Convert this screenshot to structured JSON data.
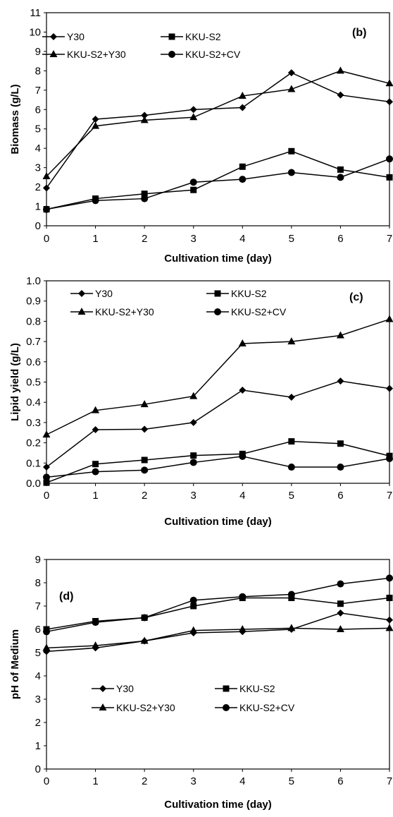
{
  "chart_data": [
    {
      "type": "line",
      "panel_label": "(b)",
      "xlabel": "Cultivation time (day)",
      "ylabel": "Biomass (g/L)",
      "xlim": [
        0,
        7
      ],
      "ylim": [
        0,
        11
      ],
      "x": [
        0,
        1,
        2,
        3,
        4,
        5,
        6,
        7
      ],
      "xticks": [
        "0",
        "1",
        "2",
        "3",
        "4",
        "5",
        "6",
        "7"
      ],
      "yticks": [
        "0",
        "1",
        "2",
        "3",
        "4",
        "5",
        "6",
        "7",
        "8",
        "9",
        "10",
        "11"
      ],
      "grid": false,
      "legend_position": "top-left",
      "series": [
        {
          "name": "Y30",
          "marker": "diamond",
          "values": [
            1.95,
            5.5,
            5.7,
            6.0,
            6.1,
            7.9,
            6.75,
            6.4
          ]
        },
        {
          "name": "KKU-S2",
          "marker": "square",
          "values": [
            0.85,
            1.4,
            1.65,
            1.85,
            3.05,
            3.85,
            2.9,
            2.5
          ]
        },
        {
          "name": "KKU-S2+Y30",
          "marker": "triangle",
          "values": [
            2.55,
            5.15,
            5.45,
            5.6,
            6.7,
            7.05,
            8.0,
            7.35
          ]
        },
        {
          "name": "KKU-S2+CV",
          "marker": "circle",
          "values": [
            0.85,
            1.3,
            1.4,
            2.25,
            2.4,
            2.75,
            2.5,
            3.45
          ]
        }
      ]
    },
    {
      "type": "line",
      "panel_label": "(c)",
      "xlabel": "Cultivation time (day)",
      "ylabel": "Lipid yield (g/L)",
      "xlim": [
        0,
        7
      ],
      "ylim": [
        0,
        1
      ],
      "x": [
        0,
        1,
        2,
        3,
        4,
        5,
        6,
        7
      ],
      "xticks": [
        "0",
        "1",
        "2",
        "3",
        "4",
        "5",
        "6",
        "7"
      ],
      "yticks": [
        "0.0",
        "0.1",
        "0.2",
        "0.3",
        "0.4",
        "0.5",
        "0.6",
        "0.7",
        "0.8",
        "0.9",
        "1.0"
      ],
      "grid": false,
      "legend_position": "top",
      "series": [
        {
          "name": "Y30",
          "marker": "diamond",
          "values": [
            0.08,
            0.265,
            0.267,
            0.3,
            0.46,
            0.425,
            0.505,
            0.468
          ]
        },
        {
          "name": "KKU-S2",
          "marker": "square",
          "values": [
            0.003,
            0.095,
            0.115,
            0.137,
            0.145,
            0.207,
            0.196,
            0.135
          ]
        },
        {
          "name": "KKU-S2+Y30",
          "marker": "triangle",
          "values": [
            0.24,
            0.36,
            0.39,
            0.43,
            0.69,
            0.7,
            0.73,
            0.81
          ]
        },
        {
          "name": "KKU-S2+CV",
          "marker": "circle",
          "values": [
            0.03,
            0.057,
            0.065,
            0.103,
            0.133,
            0.08,
            0.08,
            0.122
          ]
        }
      ]
    },
    {
      "type": "line",
      "panel_label": "(d)",
      "xlabel": "Cultivation time (day)",
      "ylabel": "pH of Medium",
      "xlim": [
        0,
        7
      ],
      "ylim": [
        0,
        9
      ],
      "x": [
        0,
        1,
        2,
        3,
        4,
        5,
        6,
        7
      ],
      "xticks": [
        "0",
        "1",
        "2",
        "3",
        "4",
        "5",
        "6",
        "7"
      ],
      "yticks": [
        "0",
        "1",
        "2",
        "3",
        "4",
        "5",
        "6",
        "7",
        "8",
        "9"
      ],
      "grid": false,
      "legend_position": "center-left",
      "series": [
        {
          "name": "Y30",
          "marker": "diamond",
          "values": [
            5.05,
            5.2,
            5.5,
            5.85,
            5.9,
            6.0,
            6.7,
            6.4
          ]
        },
        {
          "name": "KKU-S2",
          "marker": "square",
          "values": [
            6.0,
            6.35,
            6.5,
            7.0,
            7.35,
            7.35,
            7.1,
            7.35
          ]
        },
        {
          "name": "KKU-S2+Y30",
          "marker": "triangle",
          "values": [
            5.2,
            5.3,
            5.5,
            5.95,
            6.0,
            6.05,
            6.0,
            6.05
          ]
        },
        {
          "name": "KKU-S2+CV",
          "marker": "circle",
          "values": [
            5.9,
            6.3,
            6.5,
            7.25,
            7.4,
            7.5,
            7.95,
            8.2
          ]
        }
      ]
    }
  ]
}
